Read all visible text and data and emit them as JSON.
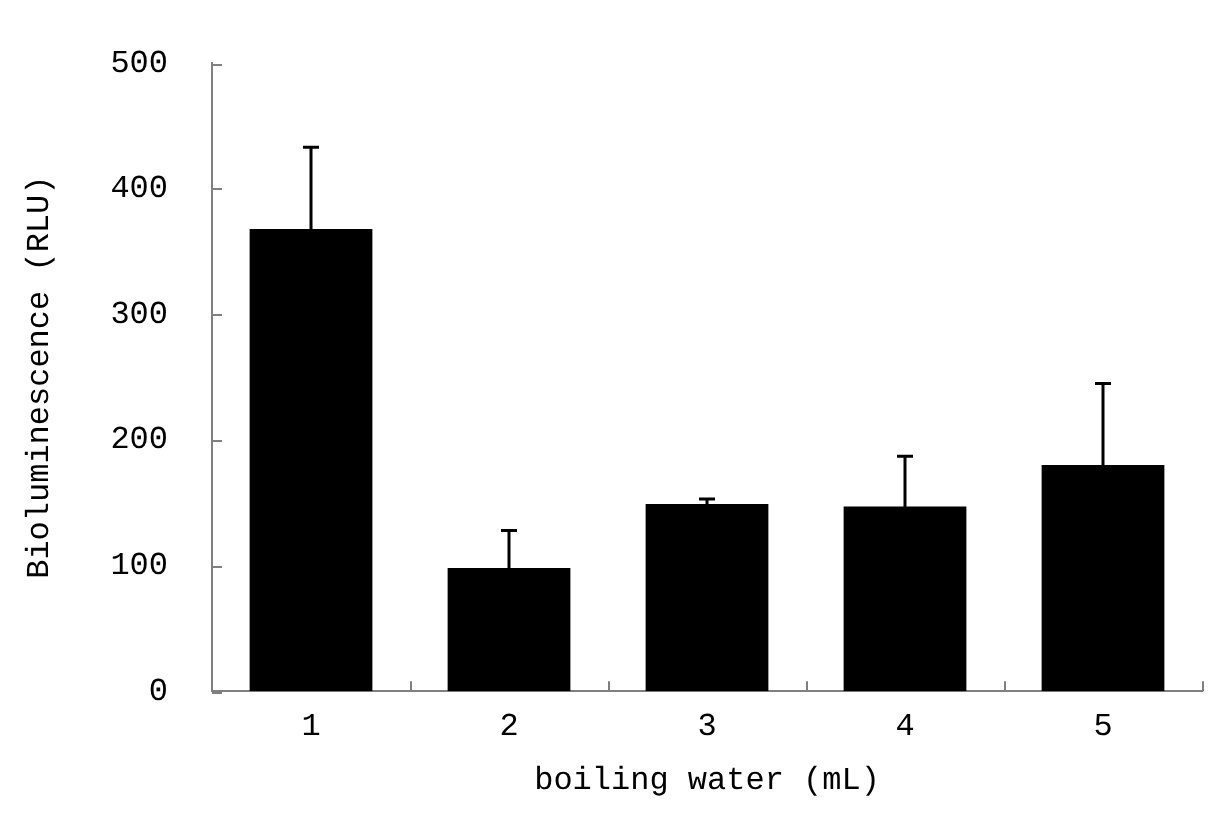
{
  "chart_data": {
    "type": "bar",
    "xlabel": "boiling water (mL)",
    "ylabel": "Bioluminescence (RLU)",
    "categories": [
      "1",
      "2",
      "3",
      "4",
      "5"
    ],
    "values": [
      368,
      98,
      149,
      147,
      180
    ],
    "errors": [
      65,
      30,
      4,
      40,
      65
    ],
    "color": "#000000",
    "ylim": [
      0,
      500
    ],
    "yticks": [
      0,
      100,
      200,
      300,
      400,
      500
    ],
    "grid": false,
    "legend": false
  }
}
